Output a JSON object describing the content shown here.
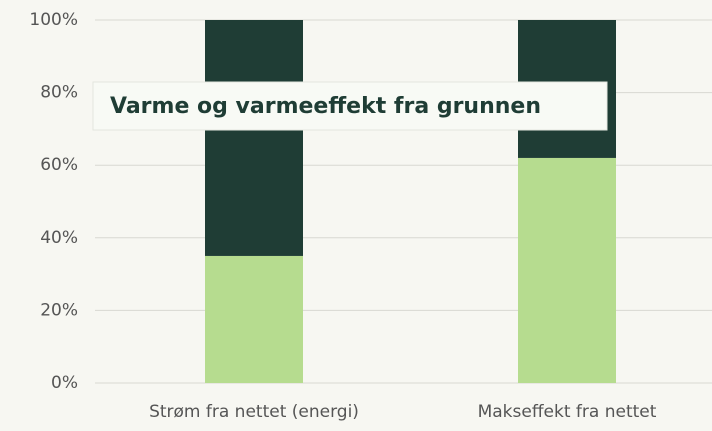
{
  "chart_data": {
    "type": "stacked_bar",
    "annotation": "Varme og varmeeffekt fra grunnen",
    "categories": [
      "Strøm fra nettet (energi)",
      "Makseffekt fra nettet"
    ],
    "series": [
      {
        "color": "#b6dc8f",
        "values": [
          35,
          62
        ]
      },
      {
        "color": "#1f3d35",
        "values": [
          65,
          38
        ]
      }
    ],
    "ylim": [
      0,
      100
    ],
    "yticks": [
      {
        "value": 0,
        "label": "0%"
      },
      {
        "value": 20,
        "label": "20%"
      },
      {
        "value": 40,
        "label": "40%"
      },
      {
        "value": 60,
        "label": "60%"
      },
      {
        "value": 80,
        "label": "80%"
      },
      {
        "value": 100,
        "label": "100%"
      }
    ],
    "grid": true
  }
}
